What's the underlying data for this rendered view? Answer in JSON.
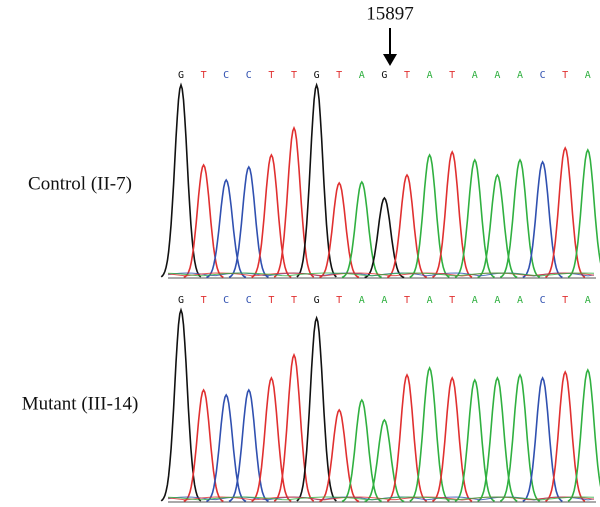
{
  "marker": {
    "label": "15897"
  },
  "panels": [
    {
      "label": "Control (II-7)",
      "bases": [
        "G",
        "T",
        "C",
        "C",
        "T",
        "T",
        "G",
        "T",
        "A",
        "G",
        "T",
        "A",
        "T",
        "A",
        "A",
        "A",
        "C",
        "T",
        "A"
      ]
    },
    {
      "label": "Mutant (III-14)",
      "bases": [
        "G",
        "T",
        "C",
        "C",
        "T",
        "T",
        "G",
        "T",
        "A",
        "A",
        "T",
        "A",
        "T",
        "A",
        "A",
        "A",
        "C",
        "T",
        "A"
      ]
    }
  ]
}
